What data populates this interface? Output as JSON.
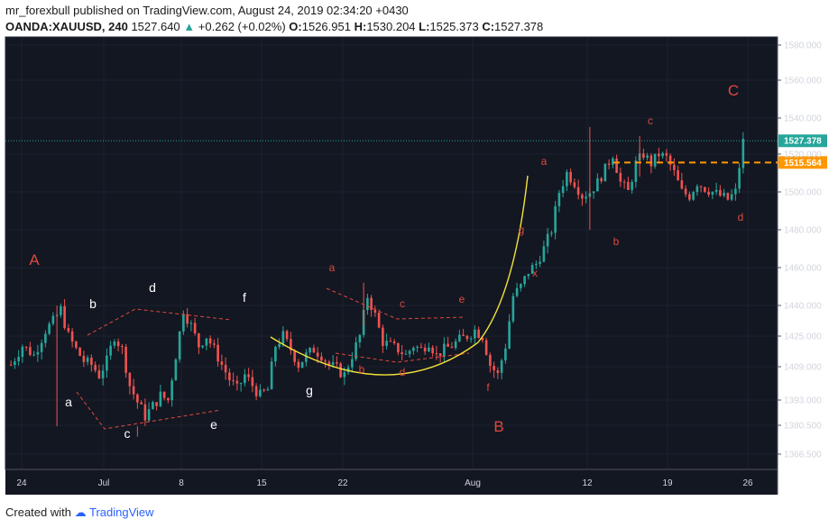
{
  "header": {
    "author": "mr_forexbull",
    "published_text": "published on TradingView.com, August 24, 2019 02:34:20 +0430",
    "symbol": "OANDA:XAUUSD, 240",
    "last": "1527.640",
    "change": "+0.262 (+0.02%)",
    "open_label": "O:",
    "open": "1526.951",
    "high_label": "H:",
    "high": "1530.204",
    "low_label": "L:",
    "low": "1525.373",
    "close_label": "C:",
    "close": "1527.378"
  },
  "footer": {
    "created_with": "Created with",
    "brand": "TradingView"
  },
  "colors": {
    "up": "#26a69a",
    "down": "#ef5350",
    "background": "#131722",
    "wave_red": "#e0483e",
    "curve": "#f5e23a",
    "resistance": "#ff9800",
    "current": "#26a69a"
  },
  "chart_data": {
    "type": "candlestick",
    "y_ticks": [
      "1580.000",
      "1560.000",
      "1540.000",
      "1520.000",
      "1500.000",
      "1480.000",
      "1460.000",
      "1440.000",
      "1425.000",
      "1409.000",
      "1393.000",
      "1380.500",
      "1366.500"
    ],
    "x_ticks": [
      "24",
      "Jul",
      "8",
      "15",
      "22",
      "Aug",
      "12",
      "19",
      "26"
    ],
    "ylim": [
      1360,
      1590
    ],
    "last_price_tag": "1527.378",
    "resistance_price_tag": "1515.564",
    "resistance_level": 1515.564,
    "current_level": 1527.378,
    "wave_labels_white": [
      "b",
      "d",
      "f",
      "a",
      "c",
      "e",
      "g"
    ],
    "wave_labels_red": [
      "a",
      "b",
      "c",
      "d",
      "e",
      "f",
      "g",
      "x",
      "a",
      "b",
      "c",
      "d"
    ],
    "big_labels": [
      "A",
      "B",
      "C"
    ],
    "close_path": [
      [
        0,
        1410
      ],
      [
        3,
        1420
      ],
      [
        6,
        1415
      ],
      [
        9,
        1428
      ],
      [
        11,
        1432
      ],
      [
        13,
        1438
      ],
      [
        15,
        1425
      ],
      [
        17,
        1418
      ],
      [
        19,
        1412
      ],
      [
        21,
        1410
      ],
      [
        23,
        1405
      ],
      [
        25,
        1412
      ],
      [
        27,
        1425
      ],
      [
        29,
        1418
      ],
      [
        31,
        1400
      ],
      [
        33,
        1392
      ],
      [
        35,
        1385
      ],
      [
        37,
        1390
      ],
      [
        39,
        1395
      ],
      [
        41,
        1393
      ],
      [
        43,
        1415
      ],
      [
        45,
        1438
      ],
      [
        47,
        1430
      ],
      [
        49,
        1420
      ],
      [
        51,
        1425
      ],
      [
        53,
        1418
      ],
      [
        55,
        1410
      ],
      [
        57,
        1403
      ],
      [
        59,
        1398
      ],
      [
        61,
        1405
      ],
      [
        63,
        1400
      ],
      [
        65,
        1395
      ],
      [
        67,
        1398
      ],
      [
        69,
        1420
      ],
      [
        71,
        1425
      ],
      [
        73,
        1418
      ],
      [
        75,
        1410
      ],
      [
        77,
        1415
      ],
      [
        79,
        1418
      ],
      [
        81,
        1415
      ],
      [
        83,
        1410
      ],
      [
        85,
        1408
      ],
      [
        87,
        1405
      ],
      [
        89,
        1415
      ],
      [
        91,
        1425
      ],
      [
        93,
        1445
      ],
      [
        95,
        1435
      ],
      [
        97,
        1422
      ],
      [
        99,
        1420
      ],
      [
        101,
        1418
      ],
      [
        103,
        1415
      ],
      [
        105,
        1420
      ],
      [
        107,
        1418
      ],
      [
        109,
        1422
      ],
      [
        111,
        1415
      ],
      [
        113,
        1418
      ],
      [
        115,
        1420
      ],
      [
        117,
        1423
      ],
      [
        119,
        1425
      ],
      [
        121,
        1428
      ],
      [
        123,
        1425
      ],
      [
        125,
        1410
      ],
      [
        127,
        1405
      ],
      [
        129,
        1420
      ],
      [
        131,
        1445
      ],
      [
        133,
        1450
      ],
      [
        135,
        1458
      ],
      [
        137,
        1462
      ],
      [
        139,
        1470
      ],
      [
        141,
        1480
      ],
      [
        143,
        1500
      ],
      [
        145,
        1510
      ],
      [
        147,
        1505
      ],
      [
        149,
        1498
      ],
      [
        151,
        1500
      ],
      [
        153,
        1505
      ],
      [
        155,
        1512
      ],
      [
        157,
        1520
      ],
      [
        159,
        1505
      ],
      [
        161,
        1500
      ],
      [
        163,
        1515
      ],
      [
        165,
        1520
      ],
      [
        167,
        1515
      ],
      [
        169,
        1520
      ],
      [
        171,
        1518
      ],
      [
        173,
        1510
      ],
      [
        175,
        1500
      ],
      [
        177,
        1498
      ],
      [
        179,
        1505
      ],
      [
        181,
        1502
      ],
      [
        183,
        1500
      ],
      [
        185,
        1498
      ],
      [
        187,
        1496
      ],
      [
        189,
        1500
      ],
      [
        191,
        1527
      ]
    ],
    "n_bars": 192
  }
}
